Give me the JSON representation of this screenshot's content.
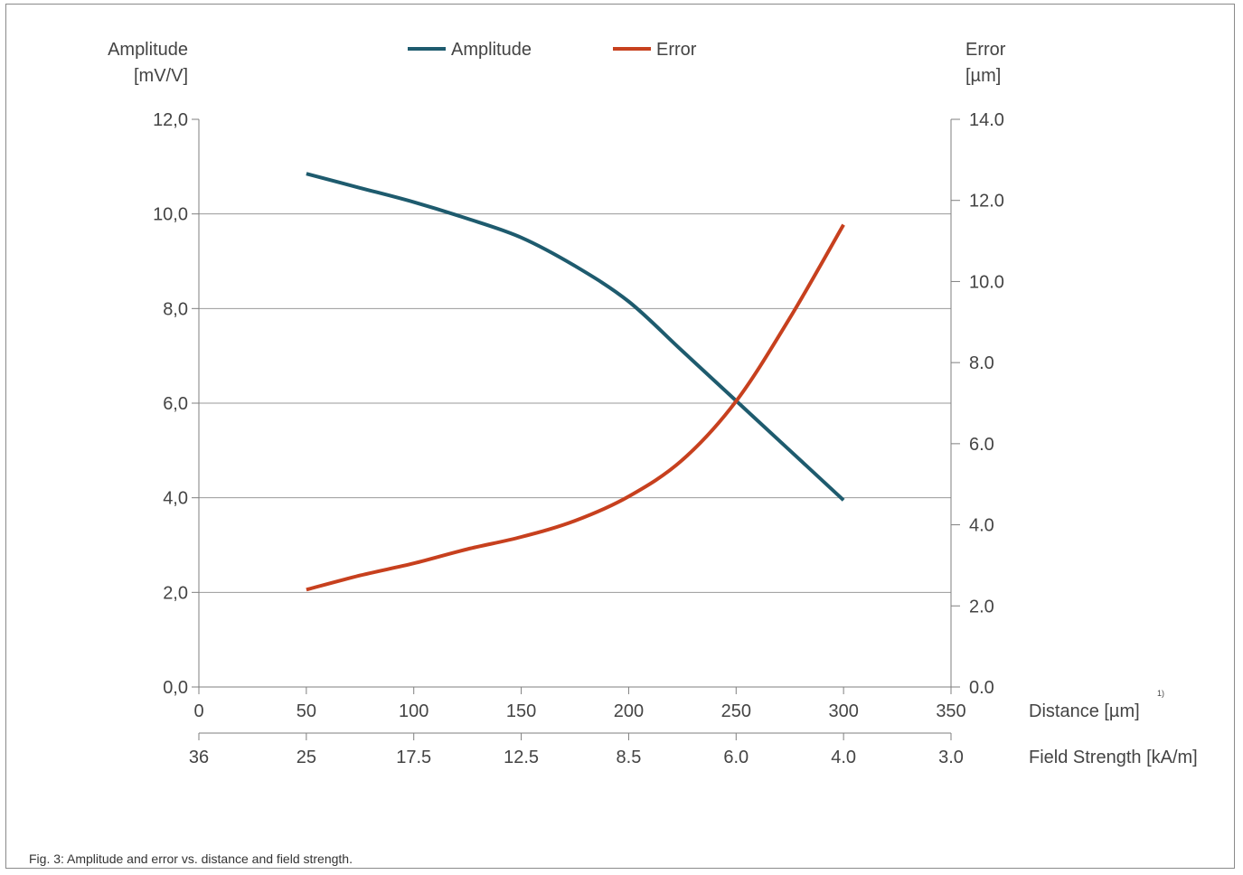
{
  "caption": "Fig. 3: Amplitude and error vs. distance and field strength.",
  "chart_data": {
    "type": "line",
    "left_axis": {
      "label_line1": "Amplitude",
      "label_line2": "[mV/V]",
      "ylim": [
        0,
        12
      ],
      "ticks": [
        0,
        2,
        4,
        6,
        8,
        10,
        12
      ],
      "tick_labels": [
        "0,0",
        "2,0",
        "4,0",
        "6,0",
        "8,0",
        "10,0",
        "12,0"
      ]
    },
    "right_axis": {
      "label_line1": "Error",
      "label_line2": "[µm]",
      "ylim": [
        0,
        14
      ],
      "ticks": [
        0,
        2,
        4,
        6,
        8,
        10,
        12,
        14
      ],
      "tick_labels": [
        "0.0",
        "2.0",
        "4.0",
        "6.0",
        "8.0",
        "10.0",
        "12.0",
        "14.0"
      ]
    },
    "x_axis": {
      "label": "Distance [µm]",
      "footnote": "1)",
      "xlim": [
        0,
        350
      ],
      "ticks": [
        0,
        50,
        100,
        150,
        200,
        250,
        300,
        350
      ],
      "tick_labels": [
        "0",
        "50",
        "100",
        "150",
        "200",
        "250",
        "300",
        "350"
      ]
    },
    "x2_axis": {
      "label": "Field Strength [kA/m]",
      "tick_labels": [
        "36",
        "25",
        "17.5",
        "12.5",
        "8.5",
        "6.0",
        "4.0",
        "3.0"
      ]
    },
    "grid": "horizontal",
    "legend_position": "top-center",
    "series": [
      {
        "name": "Amplitude",
        "axis": "left",
        "color": "#1e5b6e",
        "x": [
          50,
          75,
          100,
          125,
          150,
          175,
          200,
          225,
          250,
          275,
          300
        ],
        "y": [
          10.85,
          10.55,
          10.25,
          9.9,
          9.5,
          8.9,
          8.15,
          7.1,
          6.05,
          5.0,
          3.95
        ]
      },
      {
        "name": "Error",
        "axis": "right",
        "color": "#c7401e",
        "x": [
          50,
          75,
          100,
          125,
          150,
          175,
          200,
          225,
          250,
          275,
          300
        ],
        "y": [
          2.4,
          2.75,
          3.05,
          3.4,
          3.7,
          4.1,
          4.7,
          5.6,
          7.05,
          9.1,
          11.4
        ]
      }
    ]
  }
}
